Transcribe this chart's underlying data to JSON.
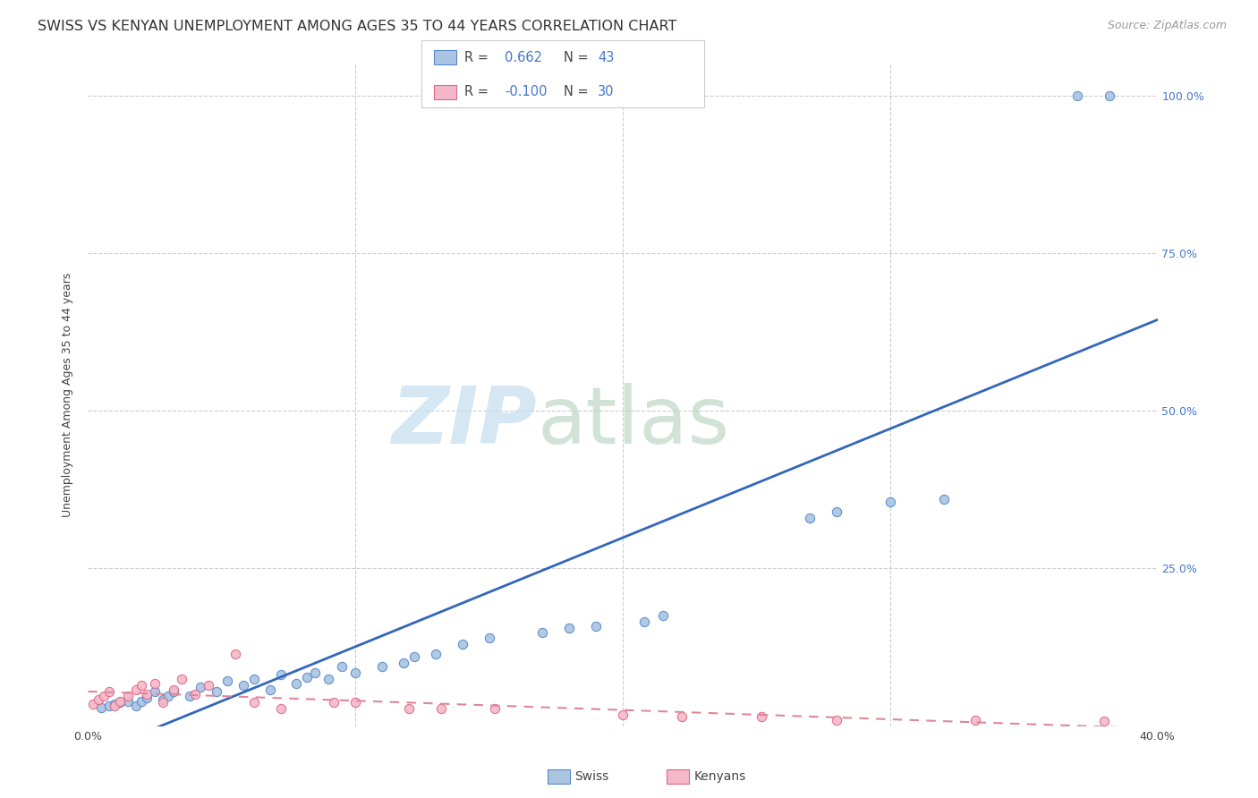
{
  "title": "SWISS VS KENYAN UNEMPLOYMENT AMONG AGES 35 TO 44 YEARS CORRELATION CHART",
  "source": "Source: ZipAtlas.com",
  "ylabel": "Unemployment Among Ages 35 to 44 years",
  "xlim": [
    0.0,
    0.4
  ],
  "ylim": [
    0.0,
    1.05
  ],
  "x_ticks": [
    0.0,
    0.1,
    0.2,
    0.3,
    0.4
  ],
  "x_tick_labels": [
    "0.0%",
    "",
    "",
    "",
    "40.0%"
  ],
  "y_ticks": [
    0.0,
    0.25,
    0.5,
    0.75,
    1.0
  ],
  "y_tick_labels": [
    "",
    "25.0%",
    "50.0%",
    "75.0%",
    "100.0%"
  ],
  "swiss_R": 0.662,
  "swiss_N": 43,
  "kenyan_R": -0.1,
  "kenyan_N": 30,
  "swiss_color": "#aac4e2",
  "kenyan_color": "#f5b8c8",
  "swiss_edge_color": "#5588cc",
  "kenyan_edge_color": "#dd6688",
  "swiss_line_color": "#3366bb",
  "kenyan_line_color": "#dd8899",
  "background_color": "#ffffff",
  "grid_color": "#cccccc",
  "swiss_x": [
    0.005,
    0.008,
    0.01,
    0.012,
    0.015,
    0.018,
    0.02,
    0.022,
    0.025,
    0.028,
    0.03,
    0.032,
    0.038,
    0.042,
    0.048,
    0.052,
    0.058,
    0.062,
    0.068,
    0.072,
    0.078,
    0.082,
    0.085,
    0.09,
    0.095,
    0.1,
    0.11,
    0.118,
    0.122,
    0.13,
    0.14,
    0.15,
    0.17,
    0.18,
    0.19,
    0.208,
    0.215,
    0.27,
    0.28,
    0.3,
    0.32,
    0.37,
    0.382
  ],
  "swiss_y": [
    0.03,
    0.032,
    0.035,
    0.038,
    0.04,
    0.032,
    0.04,
    0.045,
    0.055,
    0.042,
    0.048,
    0.055,
    0.048,
    0.062,
    0.055,
    0.072,
    0.065,
    0.075,
    0.058,
    0.082,
    0.068,
    0.078,
    0.085,
    0.075,
    0.095,
    0.085,
    0.095,
    0.1,
    0.11,
    0.115,
    0.13,
    0.14,
    0.148,
    0.155,
    0.158,
    0.165,
    0.175,
    0.33,
    0.34,
    0.355,
    0.36,
    1.0,
    1.0
  ],
  "kenyan_x": [
    0.002,
    0.004,
    0.006,
    0.008,
    0.01,
    0.012,
    0.015,
    0.018,
    0.02,
    0.022,
    0.025,
    0.028,
    0.032,
    0.035,
    0.04,
    0.045,
    0.055,
    0.062,
    0.072,
    0.092,
    0.1,
    0.12,
    0.132,
    0.152,
    0.2,
    0.222,
    0.252,
    0.28,
    0.332,
    0.38
  ],
  "kenyan_y": [
    0.035,
    0.042,
    0.048,
    0.055,
    0.032,
    0.04,
    0.048,
    0.058,
    0.065,
    0.05,
    0.068,
    0.038,
    0.058,
    0.075,
    0.05,
    0.065,
    0.115,
    0.038,
    0.028,
    0.038,
    0.038,
    0.028,
    0.028,
    0.028,
    0.018,
    0.015,
    0.015,
    0.01,
    0.01,
    0.008
  ],
  "legend_swiss_label": "Swiss",
  "legend_kenyan_label": "Kenyans",
  "title_fontsize": 11.5,
  "axis_label_fontsize": 9,
  "tick_fontsize": 9,
  "source_fontsize": 9
}
